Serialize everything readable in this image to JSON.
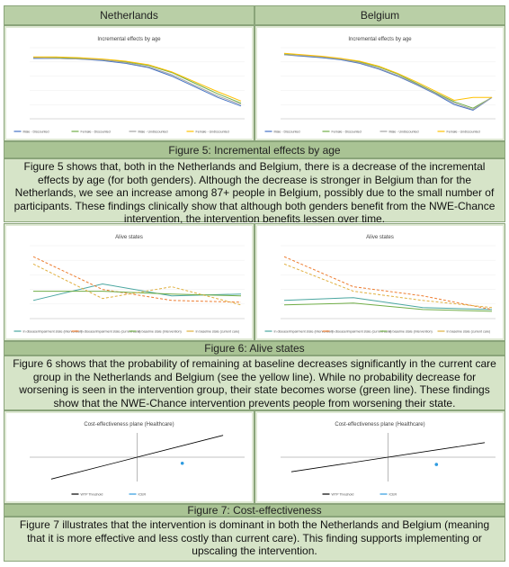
{
  "columns": [
    "Netherlands",
    "Belgium"
  ],
  "sections": [
    {
      "caption": "Figure 5: Incremental effects by age",
      "text": "Figure 5 shows that, both in the Netherlands and Belgium, there is a decrease of the incremental effects by age (for both genders). Although the decrease is stronger in Belgium than for the Netherlands, we see an increase among 87+ people in Belgium, possibly due to the small number of participants. These findings clinically show that although both genders benefit from the NWE-Chance intervention, the intervention benefits lessen over time.",
      "charts": [
        {
          "type": "line",
          "title": "Incremental effects by age",
          "ylim": [
            0,
            1
          ],
          "series": [
            {
              "name": "Male - Discounted",
              "color": "#4472c4",
              "values": [
                0.85,
                0.85,
                0.84,
                0.82,
                0.78,
                0.72,
                0.6,
                0.45,
                0.3,
                0.18
              ]
            },
            {
              "name": "Female - Discounted",
              "color": "#70ad47",
              "values": [
                0.86,
                0.86,
                0.85,
                0.83,
                0.8,
                0.75,
                0.65,
                0.5,
                0.35,
                0.22
              ]
            },
            {
              "name": "Male - Undiscounted",
              "color": "#a5a5a5",
              "values": [
                0.86,
                0.85,
                0.84,
                0.83,
                0.79,
                0.73,
                0.62,
                0.47,
                0.32,
                0.2
              ]
            },
            {
              "name": "Female - Undiscounted",
              "color": "#ffc000",
              "values": [
                0.87,
                0.87,
                0.86,
                0.84,
                0.81,
                0.76,
                0.66,
                0.52,
                0.38,
                0.25
              ]
            }
          ]
        },
        {
          "type": "line",
          "title": "Incremental effects by age",
          "ylim": [
            0,
            1
          ],
          "series": [
            {
              "name": "Male - Discounted",
              "color": "#4472c4",
              "values": [
                0.9,
                0.88,
                0.86,
                0.83,
                0.78,
                0.7,
                0.6,
                0.48,
                0.35,
                0.2,
                0.12,
                0.3
              ]
            },
            {
              "name": "Female - Discounted",
              "color": "#70ad47",
              "values": [
                0.91,
                0.89,
                0.87,
                0.84,
                0.8,
                0.73,
                0.63,
                0.5,
                0.37,
                0.24,
                0.15,
                0.3
              ]
            },
            {
              "name": "Male - Undiscounted",
              "color": "#a5a5a5",
              "values": [
                0.9,
                0.89,
                0.87,
                0.84,
                0.79,
                0.71,
                0.61,
                0.49,
                0.36,
                0.22,
                0.13,
                0.3
              ]
            },
            {
              "name": "Female - Undiscounted",
              "color": "#ffc000",
              "values": [
                0.92,
                0.9,
                0.88,
                0.85,
                0.81,
                0.74,
                0.64,
                0.52,
                0.39,
                0.26,
                0.3,
                0.3
              ]
            }
          ]
        }
      ]
    },
    {
      "caption": "Figure 6: Alive states",
      "text": "Figure 6 shows that the probability of remaining at baseline decreases significantly in the current care group in the Netherlands and Belgium (see the yellow line). While no probability decrease for worsening is seen in the intervention group, their state becomes worse (green line). These findings show that the NWE-Chance intervention prevents people from worsening their state.",
      "charts": [
        {
          "type": "line",
          "title": "Alive states",
          "ylim": [
            0,
            0.8
          ],
          "series": [
            {
              "name": "In disease/impairment state (intervention)",
              "color": "#4aa6a0",
              "values": [
                0.2,
                0.38,
                0.25,
                0.27
              ]
            },
            {
              "name": "In disease/impairment state (current care)",
              "color": "#ed7d31",
              "dash": true,
              "values": [
                0.68,
                0.32,
                0.2,
                0.18
              ]
            },
            {
              "name": "In baseline state (intervention)",
              "color": "#70ad47",
              "values": [
                0.3,
                0.3,
                0.27,
                0.25
              ]
            },
            {
              "name": "In baseline state (current care)",
              "color": "#e0b040",
              "dash": true,
              "values": [
                0.6,
                0.22,
                0.35,
                0.15
              ]
            }
          ]
        },
        {
          "type": "line",
          "title": "Alive states",
          "ylim": [
            0,
            0.8
          ],
          "series": [
            {
              "name": "In disease/impairment state (intervention)",
              "color": "#4aa6a0",
              "values": [
                0.2,
                0.23,
                0.12,
                0.1
              ]
            },
            {
              "name": "In disease/impairment state (current care)",
              "color": "#ed7d31",
              "dash": true,
              "values": [
                0.68,
                0.35,
                0.25,
                0.1
              ]
            },
            {
              "name": "In baseline state (intervention)",
              "color": "#70ad47",
              "values": [
                0.15,
                0.17,
                0.1,
                0.08
              ]
            },
            {
              "name": "In baseline state (current care)",
              "color": "#e0b040",
              "dash": true,
              "values": [
                0.6,
                0.3,
                0.2,
                0.12
              ]
            }
          ]
        }
      ]
    },
    {
      "caption": "Figure 7: Cost-effectiveness",
      "text": "Figure 7 illustrates that the intervention is dominant in both the Netherlands and Belgium (meaning that it is more effective and less costly than current care). This finding supports implementing or upscaling the intervention.",
      "charts": [
        {
          "type": "scatter",
          "title": "Cost-effectiveness plane (Healthcare)",
          "xlim": [
            -1,
            1
          ],
          "ylim": [
            -1,
            1
          ],
          "series": [
            {
              "name": "WTP Threshold",
              "color": "#000000",
              "line": true,
              "x": [
                -0.8,
                0.8
              ],
              "values": [
                -0.9,
                0.9
              ]
            },
            {
              "name": "ICER",
              "color": "#2e9be0",
              "x": [
                0.42
              ],
              "values": [
                -0.25
              ]
            }
          ]
        },
        {
          "type": "scatter",
          "title": "Cost-effectiveness plane (Healthcare)",
          "xlim": [
            -1,
            1
          ],
          "ylim": [
            -1,
            1
          ],
          "series": [
            {
              "name": "WTP Threshold",
              "color": "#000000",
              "line": true,
              "x": [
                -0.9,
                0.9
              ],
              "values": [
                -0.6,
                0.6
              ]
            },
            {
              "name": "ICER",
              "color": "#2e9be0",
              "x": [
                0.45
              ],
              "values": [
                -0.3
              ]
            }
          ]
        }
      ]
    }
  ]
}
